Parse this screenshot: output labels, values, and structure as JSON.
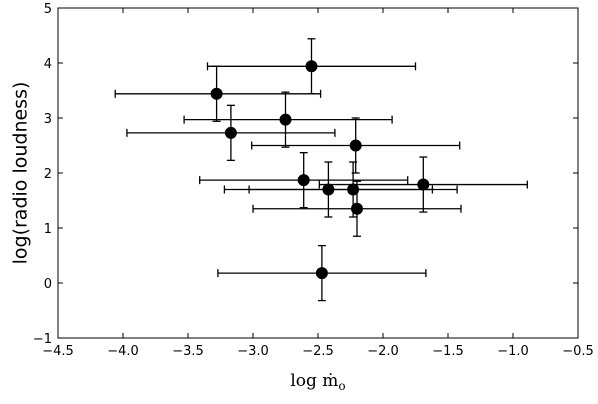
{
  "chart_data": {
    "type": "scatter",
    "title": "",
    "xlabel": "log ṁ",
    "xlabel_subscript": "o",
    "ylabel": "log(radio loudness)",
    "xlim": [
      -4.5,
      -0.5
    ],
    "ylim": [
      -1,
      5
    ],
    "xticks": [
      -4.5,
      -4.0,
      -3.5,
      -3.0,
      -2.5,
      -2.0,
      -1.5,
      -1.0,
      -0.5
    ],
    "xtick_labels": [
      "−4.5",
      "−4.0",
      "−3.5",
      "−3.0",
      "−2.5",
      "−2.0",
      "−1.5",
      "−1.0",
      "−0.5"
    ],
    "yticks": [
      -1,
      0,
      1,
      2,
      3,
      4,
      5
    ],
    "ytick_labels": [
      "−1",
      "0",
      "1",
      "2",
      "3",
      "4",
      "5"
    ],
    "grid": false,
    "marker_color": "#000000",
    "points": [
      {
        "x": -2.55,
        "y": 3.94,
        "xerr_lo": 0.8,
        "xerr_hi": 0.8,
        "yerr_lo": 0.5,
        "yerr_hi": 0.5
      },
      {
        "x": -3.28,
        "y": 3.44,
        "xerr_lo": 0.78,
        "xerr_hi": 0.8,
        "yerr_lo": 0.5,
        "yerr_hi": 0.5
      },
      {
        "x": -2.75,
        "y": 2.97,
        "xerr_lo": 0.78,
        "xerr_hi": 0.82,
        "yerr_lo": 0.5,
        "yerr_hi": 0.5
      },
      {
        "x": -3.17,
        "y": 2.73,
        "xerr_lo": 0.8,
        "xerr_hi": 0.8,
        "yerr_lo": 0.5,
        "yerr_hi": 0.5
      },
      {
        "x": -2.21,
        "y": 2.5,
        "xerr_lo": 0.8,
        "xerr_hi": 0.8,
        "yerr_lo": 0.5,
        "yerr_hi": 0.5
      },
      {
        "x": -2.61,
        "y": 1.87,
        "xerr_lo": 0.8,
        "xerr_hi": 0.8,
        "yerr_lo": 0.5,
        "yerr_hi": 0.5
      },
      {
        "x": -2.42,
        "y": 1.7,
        "xerr_lo": 0.8,
        "xerr_hi": 0.8,
        "yerr_lo": 0.5,
        "yerr_hi": 0.5
      },
      {
        "x": -2.23,
        "y": 1.7,
        "xerr_lo": 0.8,
        "xerr_hi": 0.8,
        "yerr_lo": 0.5,
        "yerr_hi": 0.5
      },
      {
        "x": -1.69,
        "y": 1.79,
        "xerr_lo": 0.8,
        "xerr_hi": 0.8,
        "yerr_lo": 0.5,
        "yerr_hi": 0.5
      },
      {
        "x": -2.2,
        "y": 1.35,
        "xerr_lo": 0.8,
        "xerr_hi": 0.8,
        "yerr_lo": 0.5,
        "yerr_hi": 0.5
      },
      {
        "x": -2.47,
        "y": 0.18,
        "xerr_lo": 0.8,
        "xerr_hi": 0.8,
        "yerr_lo": 0.5,
        "yerr_hi": 0.5
      }
    ]
  }
}
